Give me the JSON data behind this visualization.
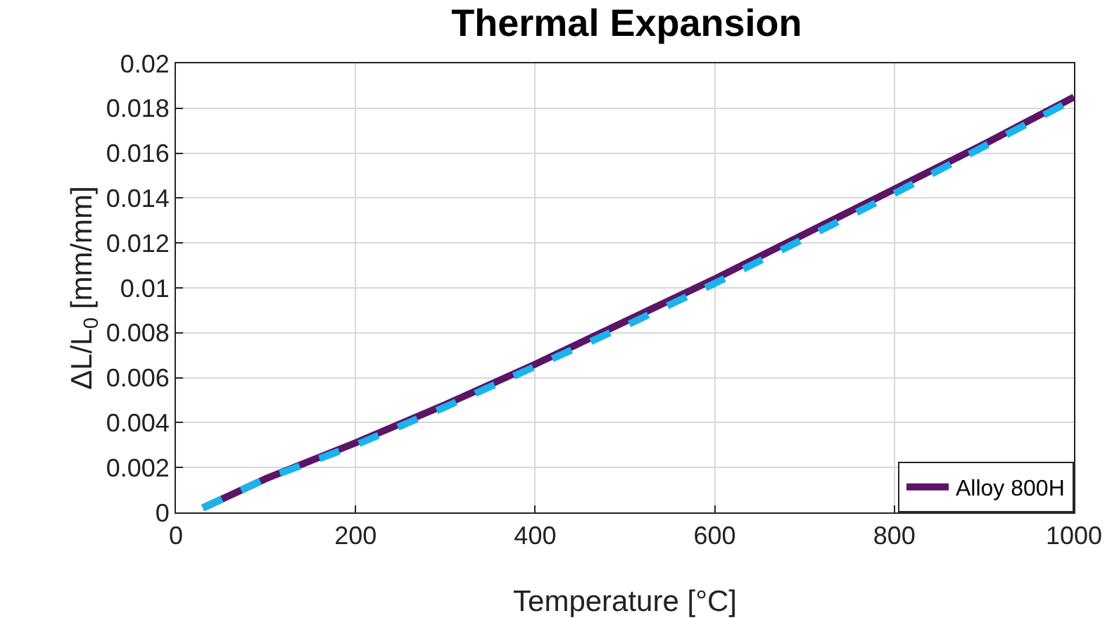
{
  "chart_data": {
    "type": "line",
    "title": "Thermal Expansion",
    "xlabel": "Temperature [°C]",
    "ylabel": "ΔL/L$_{0}$ [mm/mm]",
    "x": [
      30,
      100,
      200,
      300,
      400,
      500,
      600,
      700,
      800,
      900,
      1000
    ],
    "series": [
      {
        "name": "Alloy 800H",
        "color": "#5b1466",
        "line_style": "solid",
        "values": [
          0.0002,
          0.0015,
          0.0031,
          0.0048,
          0.0066,
          0.0085,
          0.0104,
          0.0124,
          0.0144,
          0.0164,
          0.0185
        ]
      },
      {
        "color": "#1ab3ee",
        "line_style": "dashed",
        "values": [
          0.0002,
          0.0015,
          0.003,
          0.0047,
          0.0065,
          0.0083,
          0.0102,
          0.0122,
          0.0142,
          0.0163,
          0.0184
        ]
      }
    ],
    "xlim": [
      0,
      1000
    ],
    "xticks": [
      0,
      200,
      400,
      600,
      800,
      1000
    ],
    "ylim": [
      0,
      0.02
    ],
    "yticks": [
      0,
      0.002,
      0.004,
      0.006,
      0.008,
      0.01,
      0.012,
      0.014,
      0.016,
      0.018,
      0.02
    ],
    "grid": true,
    "legend": "bottom right",
    "marker": "none"
  }
}
